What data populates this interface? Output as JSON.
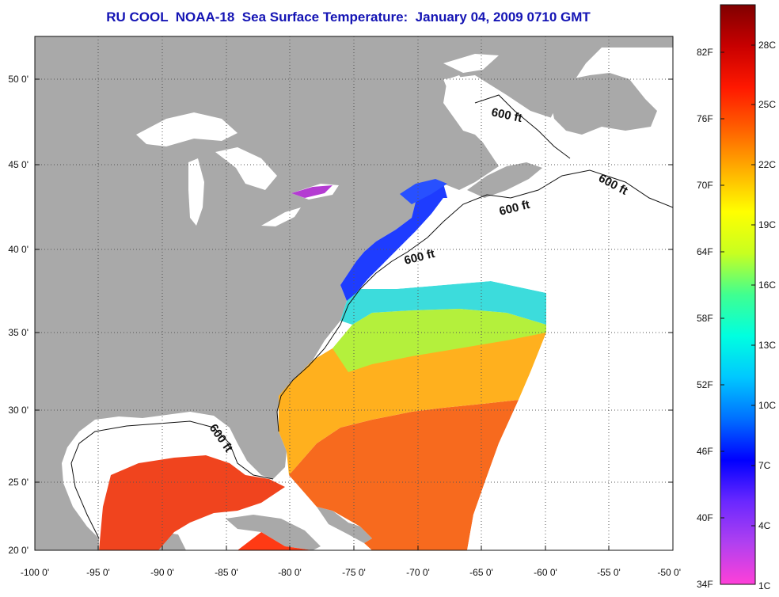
{
  "title": "RU COOL  NOAA-18  Sea Surface Temperature:  January 04, 2009 0710 GMT",
  "map": {
    "lat_range": [
      20,
      52.5
    ],
    "lon_range": [
      -100,
      -50
    ],
    "lat_ticks": [
      "50 0'",
      "45 0'",
      "40 0'",
      "35 0'",
      "30 0'",
      "25 0'",
      "20 0'"
    ],
    "lon_ticks": [
      "-100 0'",
      "-95 0'",
      "-90 0'",
      "-85 0'",
      "-80 0'",
      "-75 0'",
      "-70 0'",
      "-65 0'",
      "-60 0'",
      "-55 0'",
      "-50 0'"
    ],
    "contour_labels": [
      "600 ft",
      "600 ft",
      "600 ft",
      "600 ft",
      "600 ft"
    ],
    "colors": {
      "land": "#a9a9a9",
      "no_data": "#ffffff",
      "grid": "#555555"
    }
  },
  "colorbar": {
    "fahrenheit_labels": [
      "82F",
      "76F",
      "70F",
      "64F",
      "58F",
      "52F",
      "46F",
      "40F",
      "34F"
    ],
    "celsius_labels": [
      "28C",
      "25C",
      "22C",
      "19C",
      "16C",
      "13C",
      "10C",
      "7C",
      "4C",
      "1C"
    ],
    "gradient_colors": [
      "#ff40d8",
      "#b040f0",
      "#6a28ff",
      "#0000ff",
      "#0070ff",
      "#00c8ff",
      "#00ffe0",
      "#40ff90",
      "#c8ff20",
      "#ffff00",
      "#ffb000",
      "#ff6000",
      "#ff1800",
      "#c80000",
      "#800000"
    ]
  }
}
